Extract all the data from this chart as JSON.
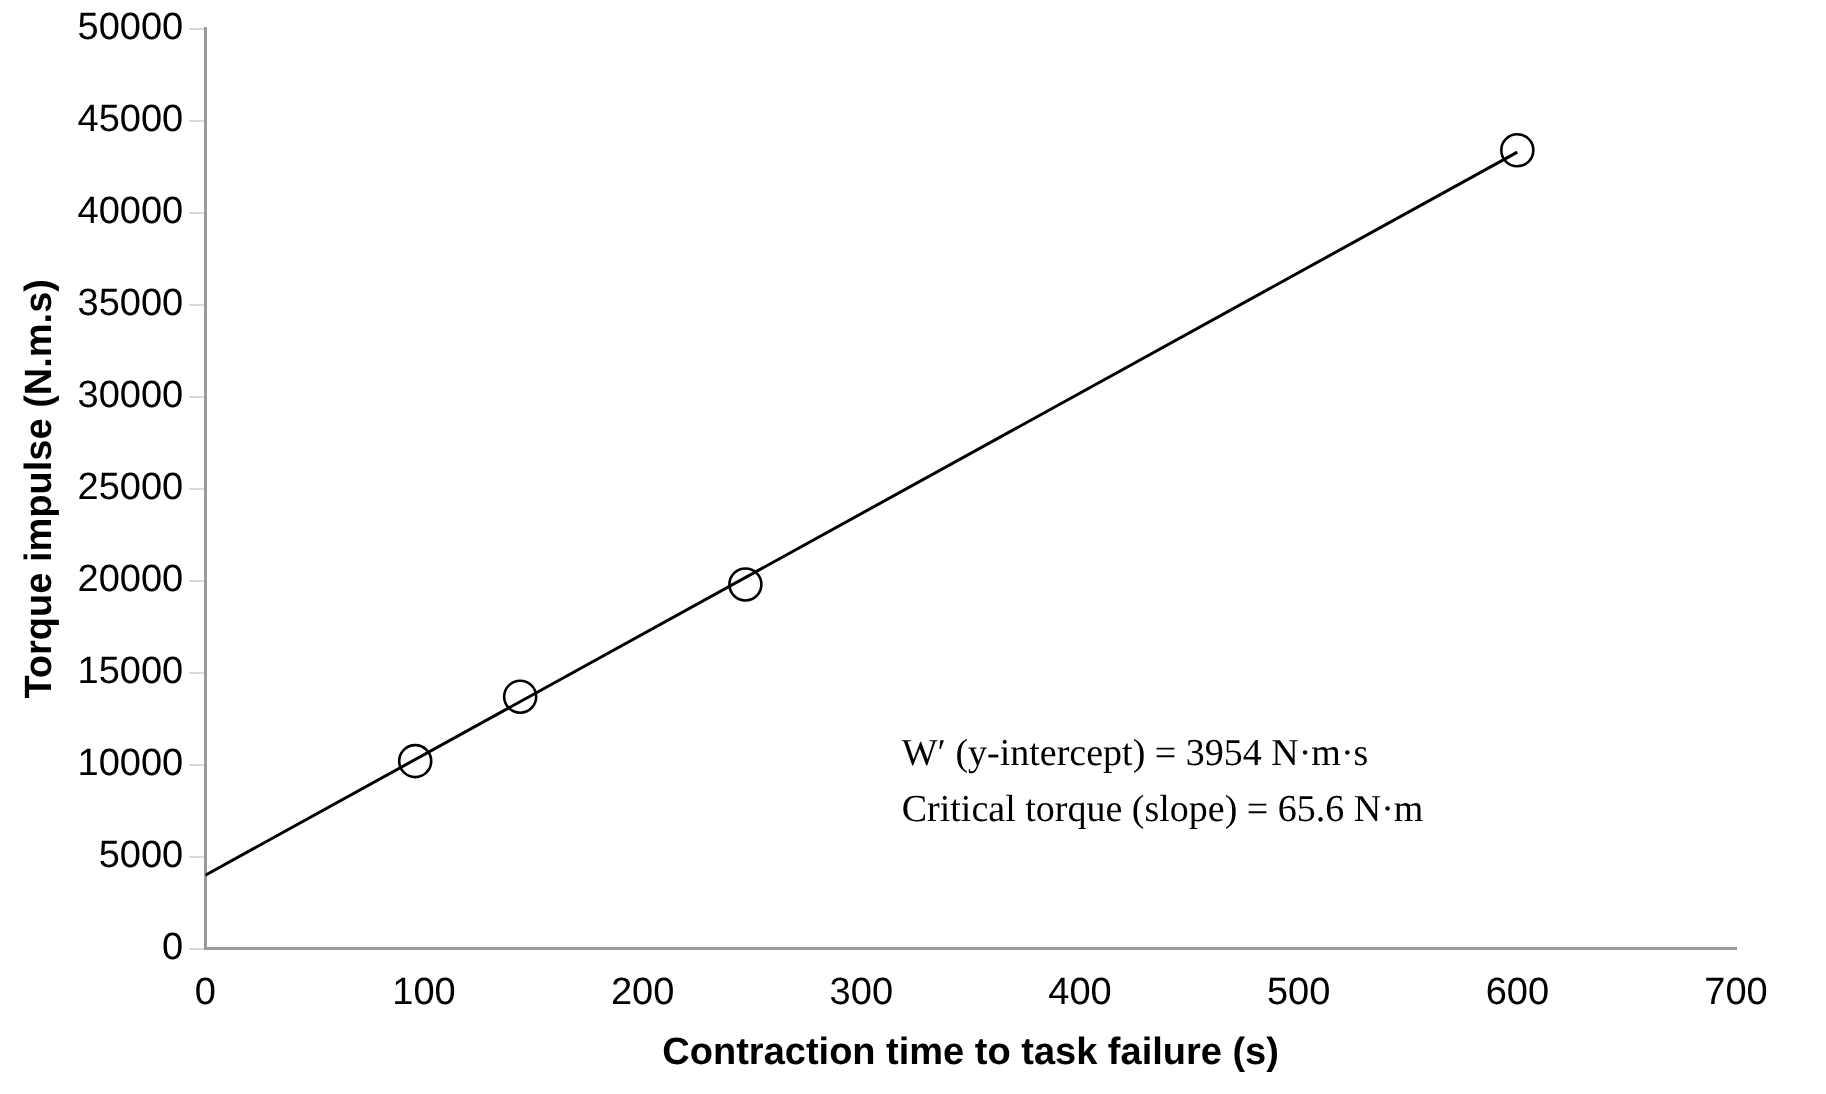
{
  "chart_data": {
    "type": "scatter",
    "xlabel": "Contraction time to task failure (s)",
    "ylabel": "Torque impulse (N.m.s)",
    "xlim": [
      0,
      700
    ],
    "xticks": [
      0,
      100,
      200,
      300,
      400,
      500,
      600,
      700
    ],
    "ylim": [
      0,
      50000
    ],
    "yticks": [
      0,
      5000,
      10000,
      15000,
      20000,
      25000,
      30000,
      35000,
      40000,
      45000,
      50000
    ],
    "grid": false,
    "legend": false,
    "marker": "circle",
    "series": [
      {
        "color": "#000000",
        "x": [
          96,
          144,
          247,
          600
        ],
        "values": [
          10200,
          13700,
          19800,
          43400
        ]
      },
      {
        "type": "line",
        "color": "#000000",
        "marker": "none",
        "x": [
          0,
          600
        ],
        "values": [
          4000,
          43300
        ]
      }
    ],
    "annotations": [
      "W′ (y-intercept) = 3954 N·m·s",
      "Critical torque (slope) = 65.6 N·m"
    ]
  }
}
